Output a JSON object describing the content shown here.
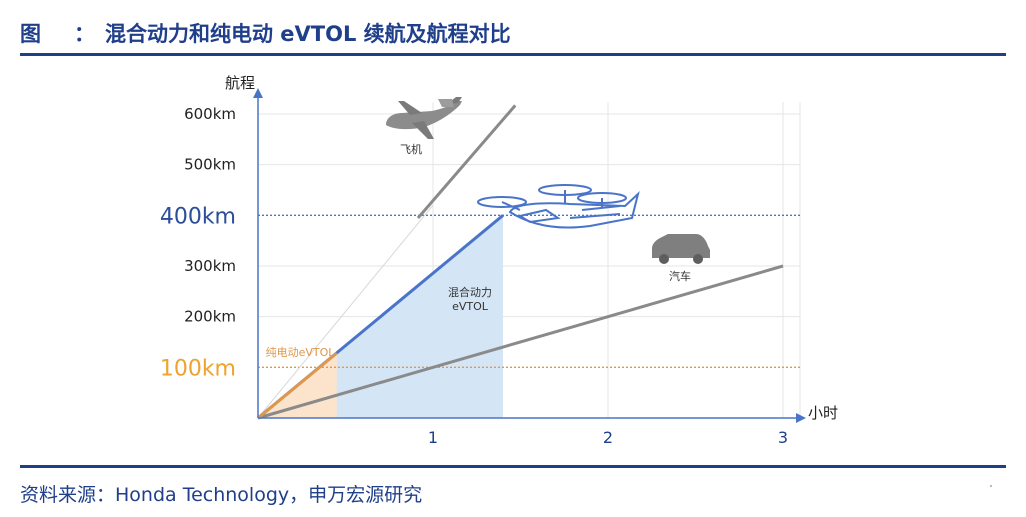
{
  "header": {
    "fig_label": "图",
    "colon": "：",
    "title": "混合动力和纯电动 eVTOL 续航及航程对比"
  },
  "footer": {
    "source": "资料来源：Honda Technology，申万宏源研究"
  },
  "colors": {
    "brand": "#1f3f8a",
    "hybrid_line": "#4a74c9",
    "hybrid_fill": "#d4e5f6",
    "electric_line": "#e0974a",
    "electric_fill": "#fbe3cc",
    "gray_line": "#8a8a8a",
    "highlight_blue": "#2a4d9c",
    "highlight_orange": "#f0a22e"
  },
  "chart_data": {
    "type": "line",
    "ylabel": "航程",
    "xlabel": "小时",
    "xlim": [
      0,
      3
    ],
    "ylim": [
      0,
      600
    ],
    "x_ticks": [
      {
        "value": 1,
        "label": "1"
      },
      {
        "value": 2,
        "label": "2"
      },
      {
        "value": 3,
        "label": "3"
      }
    ],
    "y_ticks": [
      {
        "value": 100,
        "label": "100km",
        "highlight": "orange"
      },
      {
        "value": 200,
        "label": "200km"
      },
      {
        "value": 300,
        "label": "300km"
      },
      {
        "value": 400,
        "label": "400km",
        "highlight": "blue"
      },
      {
        "value": 500,
        "label": "500km"
      },
      {
        "value": 600,
        "label": "600km"
      }
    ],
    "reference_lines": [
      {
        "y": 400,
        "color": "blue"
      },
      {
        "y": 100,
        "color": "orange"
      }
    ],
    "grid": true,
    "series": [
      {
        "name": "飞机",
        "x": [
          0,
          1.47
        ],
        "y": [
          0,
          617
        ],
        "style": "gray"
      },
      {
        "name": "混合动力 eVTOL",
        "x": [
          0,
          1.4
        ],
        "y": [
          0,
          400
        ],
        "style": "blue",
        "filled": true
      },
      {
        "name": "纯电动eVTOL",
        "x": [
          0,
          0.45
        ],
        "y": [
          0,
          128
        ],
        "style": "orange",
        "filled": true
      },
      {
        "name": "汽车",
        "x": [
          0,
          3
        ],
        "y": [
          0,
          300
        ],
        "style": "gray"
      }
    ],
    "annotations": {
      "airplane": "飞机",
      "hybrid_line1": "混合动力",
      "hybrid_line2": "eVTOL",
      "electric": "纯电动eVTOL",
      "car": "汽车"
    },
    "icons": [
      "airplane-icon",
      "evtol-aircraft-icon",
      "car-icon"
    ]
  }
}
